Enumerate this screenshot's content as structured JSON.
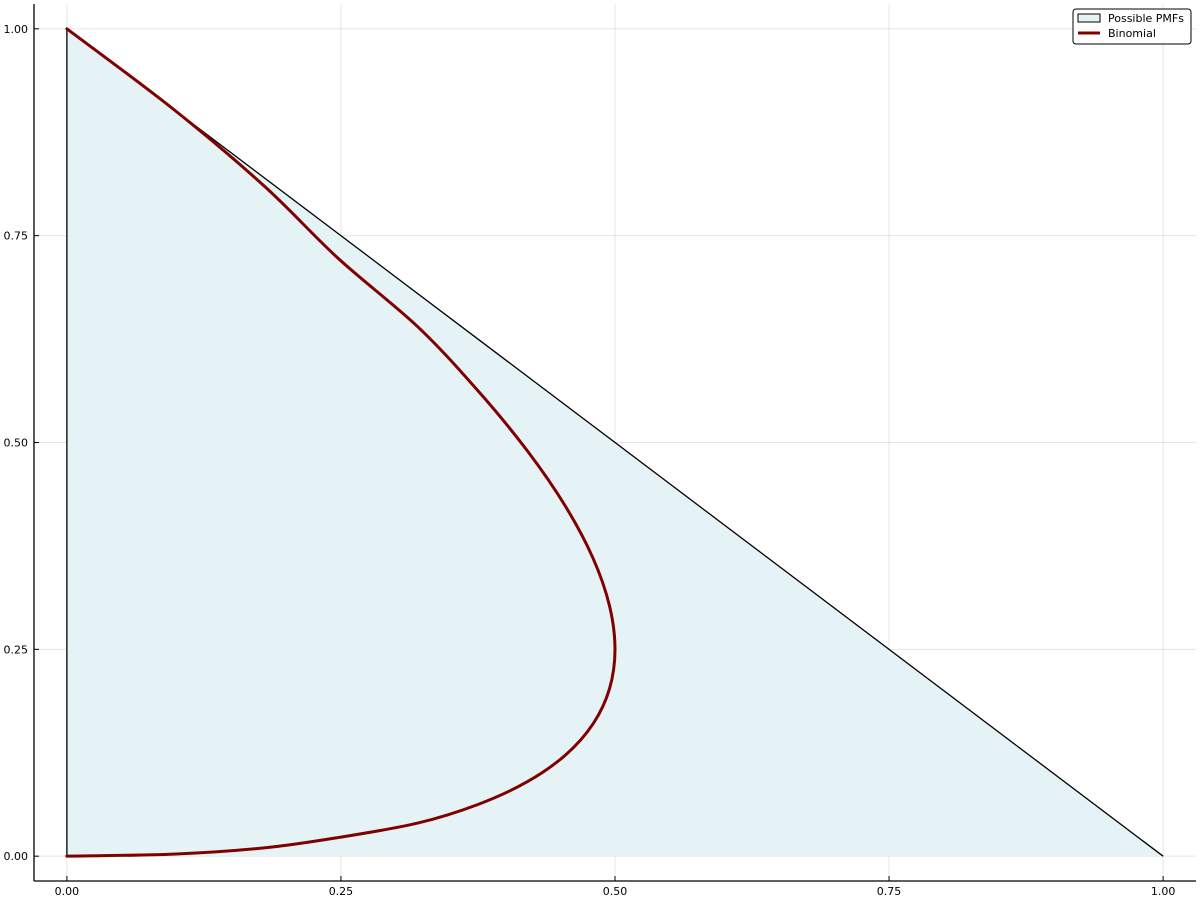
{
  "chart_data": {
    "type": "area",
    "title": "",
    "xlabel": "",
    "ylabel": "",
    "xlim": [
      -0.03,
      1.03
    ],
    "ylim": [
      -0.03,
      1.03
    ],
    "x_ticks": [
      0.0,
      0.25,
      0.5,
      0.75,
      1.0
    ],
    "x_tick_labels": [
      "0.00",
      "0.25",
      "0.50",
      "0.75",
      "1.00"
    ],
    "y_ticks": [
      0.0,
      0.25,
      0.5,
      0.75,
      1.0
    ],
    "y_tick_labels": [
      "0.00",
      "0.25",
      "0.50",
      "0.75",
      "1.00"
    ],
    "grid": true,
    "legend_position": "top-right",
    "series": [
      {
        "name": "Possible PMFs",
        "kind": "filled-polygon",
        "fill": "#e5f3f7",
        "stroke": "#000000",
        "points": [
          [
            0,
            0
          ],
          [
            1,
            0
          ],
          [
            0,
            1
          ]
        ]
      },
      {
        "name": "Binomial",
        "kind": "line",
        "stroke": "#800000",
        "points": [
          [
            0.0,
            0.0
          ],
          [
            0.0975,
            0.0025
          ],
          [
            0.18,
            0.01
          ],
          [
            0.2475,
            0.0225
          ],
          [
            0.32,
            0.04
          ],
          [
            0.375,
            0.0625
          ],
          [
            0.42,
            0.09
          ],
          [
            0.455,
            0.1225
          ],
          [
            0.48,
            0.16
          ],
          [
            0.495,
            0.2025
          ],
          [
            0.5,
            0.25
          ],
          [
            0.495,
            0.3025
          ],
          [
            0.48,
            0.36
          ],
          [
            0.455,
            0.4225
          ],
          [
            0.42,
            0.49
          ],
          [
            0.375,
            0.5625
          ],
          [
            0.32,
            0.64
          ],
          [
            0.2475,
            0.7225
          ],
          [
            0.18,
            0.81
          ],
          [
            0.0975,
            0.9025
          ],
          [
            0.0,
            1.0
          ]
        ]
      }
    ]
  }
}
